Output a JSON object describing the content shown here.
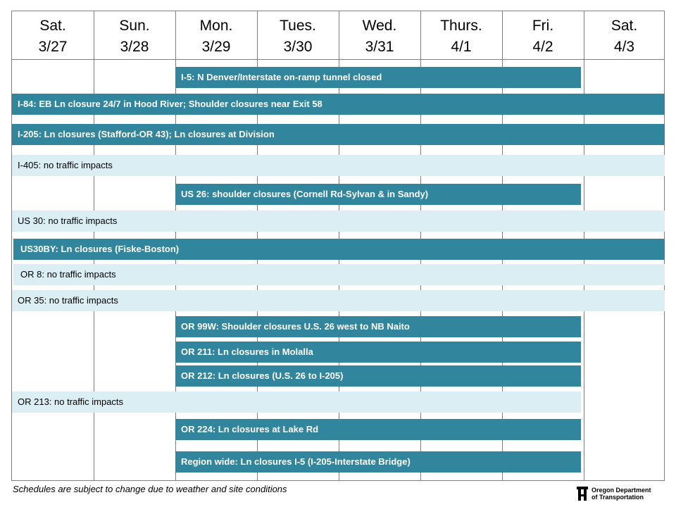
{
  "days": [
    {
      "dow": "Sat.",
      "date": "3/27"
    },
    {
      "dow": "Sun.",
      "date": "3/28"
    },
    {
      "dow": "Mon.",
      "date": "3/29"
    },
    {
      "dow": "Tues.",
      "date": "3/30"
    },
    {
      "dow": "Wed.",
      "date": "3/31"
    },
    {
      "dow": "Thurs.",
      "date": "4/1"
    },
    {
      "dow": "Fri.",
      "date": "4/2"
    },
    {
      "dow": "Sat.",
      "date": "4/3"
    }
  ],
  "events": [
    {
      "label": "I-5: N Denver/Interstate on-ramp tunnel closed",
      "style": "dark"
    },
    {
      "label": "I-84: EB Ln closure 24/7 in Hood River; Shoulder closures near Exit 58",
      "style": "dark"
    },
    {
      "label": "I-205:  Ln closures (Stafford-OR 43); Ln closures at Division",
      "style": "dark"
    },
    {
      "label": "I-405: no traffic impacts",
      "style": "light"
    },
    {
      "label": "US 26: shoulder closures (Cornell Rd-Sylvan & in Sandy)",
      "style": "dark"
    },
    {
      "label": "US 30: no traffic impacts",
      "style": "light"
    },
    {
      "label": "US30BY:  Ln closures (Fiske-Boston)",
      "style": "dark"
    },
    {
      "label": "OR 8: no traffic impacts",
      "style": "light"
    },
    {
      "label": "OR 35: no traffic impacts",
      "style": "light"
    },
    {
      "label": "OR 99W: Shoulder closures U.S. 26 west to NB Naito",
      "style": "dark"
    },
    {
      "label": "OR 211:  Ln closures in Molalla",
      "style": "dark"
    },
    {
      "label": "OR 212:  Ln closures (U.S. 26 to I-205)",
      "style": "dark"
    },
    {
      "label": "OR 213: no traffic impacts",
      "style": "light"
    },
    {
      "label": "OR 224:  Ln closures at Lake Rd",
      "style": "dark"
    },
    {
      "label": "Region wide: Ln closures I-5 (I-205-Interstate Bridge)",
      "style": "dark"
    }
  ],
  "footer": {
    "note": "Schedules are subject to change due to weather and site conditions",
    "logo_line1": "Oregon Department",
    "logo_line2": "of Transportation",
    "logo_icon": "odot-logo-icon"
  }
}
